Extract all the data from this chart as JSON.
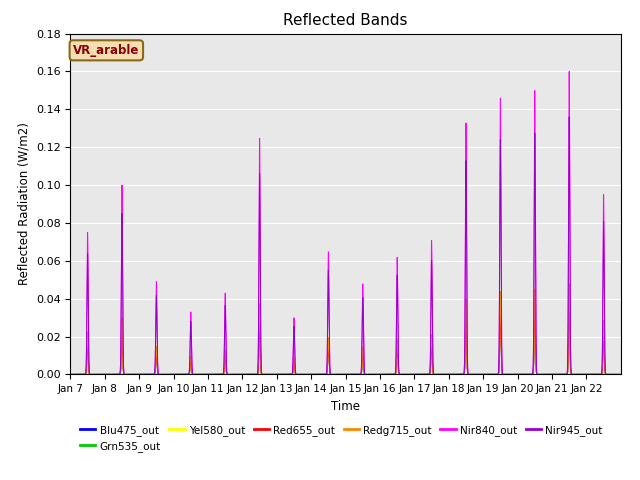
{
  "title": "Reflected Bands",
  "xlabel": "Time",
  "ylabel": "Reflected Radiation (W/m2)",
  "ylim": [
    0,
    0.18
  ],
  "annotation_text": "VR_arable",
  "annotation_color": "#8B0000",
  "annotation_bg": "#F5DEB3",
  "annotation_border": "#8B6914",
  "series_order": [
    "Blu475_out",
    "Grn535_out",
    "Yel580_out",
    "Red655_out",
    "Redg715_out",
    "Nir840_out",
    "Nir945_out"
  ],
  "series": {
    "Blu475_out": {
      "color": "#0000FF",
      "scale": 0.21
    },
    "Grn535_out": {
      "color": "#00CC00",
      "scale": 0.22
    },
    "Yel580_out": {
      "color": "#FFFF00",
      "scale": 0.2
    },
    "Red655_out": {
      "color": "#FF0000",
      "scale": 0.22
    },
    "Redg715_out": {
      "color": "#FF8800",
      "scale": 0.3
    },
    "Nir840_out": {
      "color": "#FF00FF",
      "scale": 1.0
    },
    "Nir945_out": {
      "color": "#9900CC",
      "scale": 0.85
    }
  },
  "peak_heights_nir840": [
    0.075,
    0.1,
    0.049,
    0.033,
    0.043,
    0.125,
    0.03,
    0.065,
    0.048,
    0.062,
    0.071,
    0.133,
    0.146,
    0.15,
    0.16,
    0.095
  ],
  "xtick_labels": [
    "Jan 7",
    "Jan 8",
    "Jan 9",
    "Jan 10",
    "Jan 11",
    "Jan 12",
    "Jan 13",
    "Jan 14",
    "Jan 15",
    "Jan 16",
    "Jan 17",
    "Jan 18",
    "Jan 19",
    "Jan 20",
    "Jan 21",
    "Jan 22"
  ],
  "background_color": "#E8E8E8",
  "grid_color": "white",
  "figsize": [
    6.4,
    4.8
  ],
  "dpi": 100
}
